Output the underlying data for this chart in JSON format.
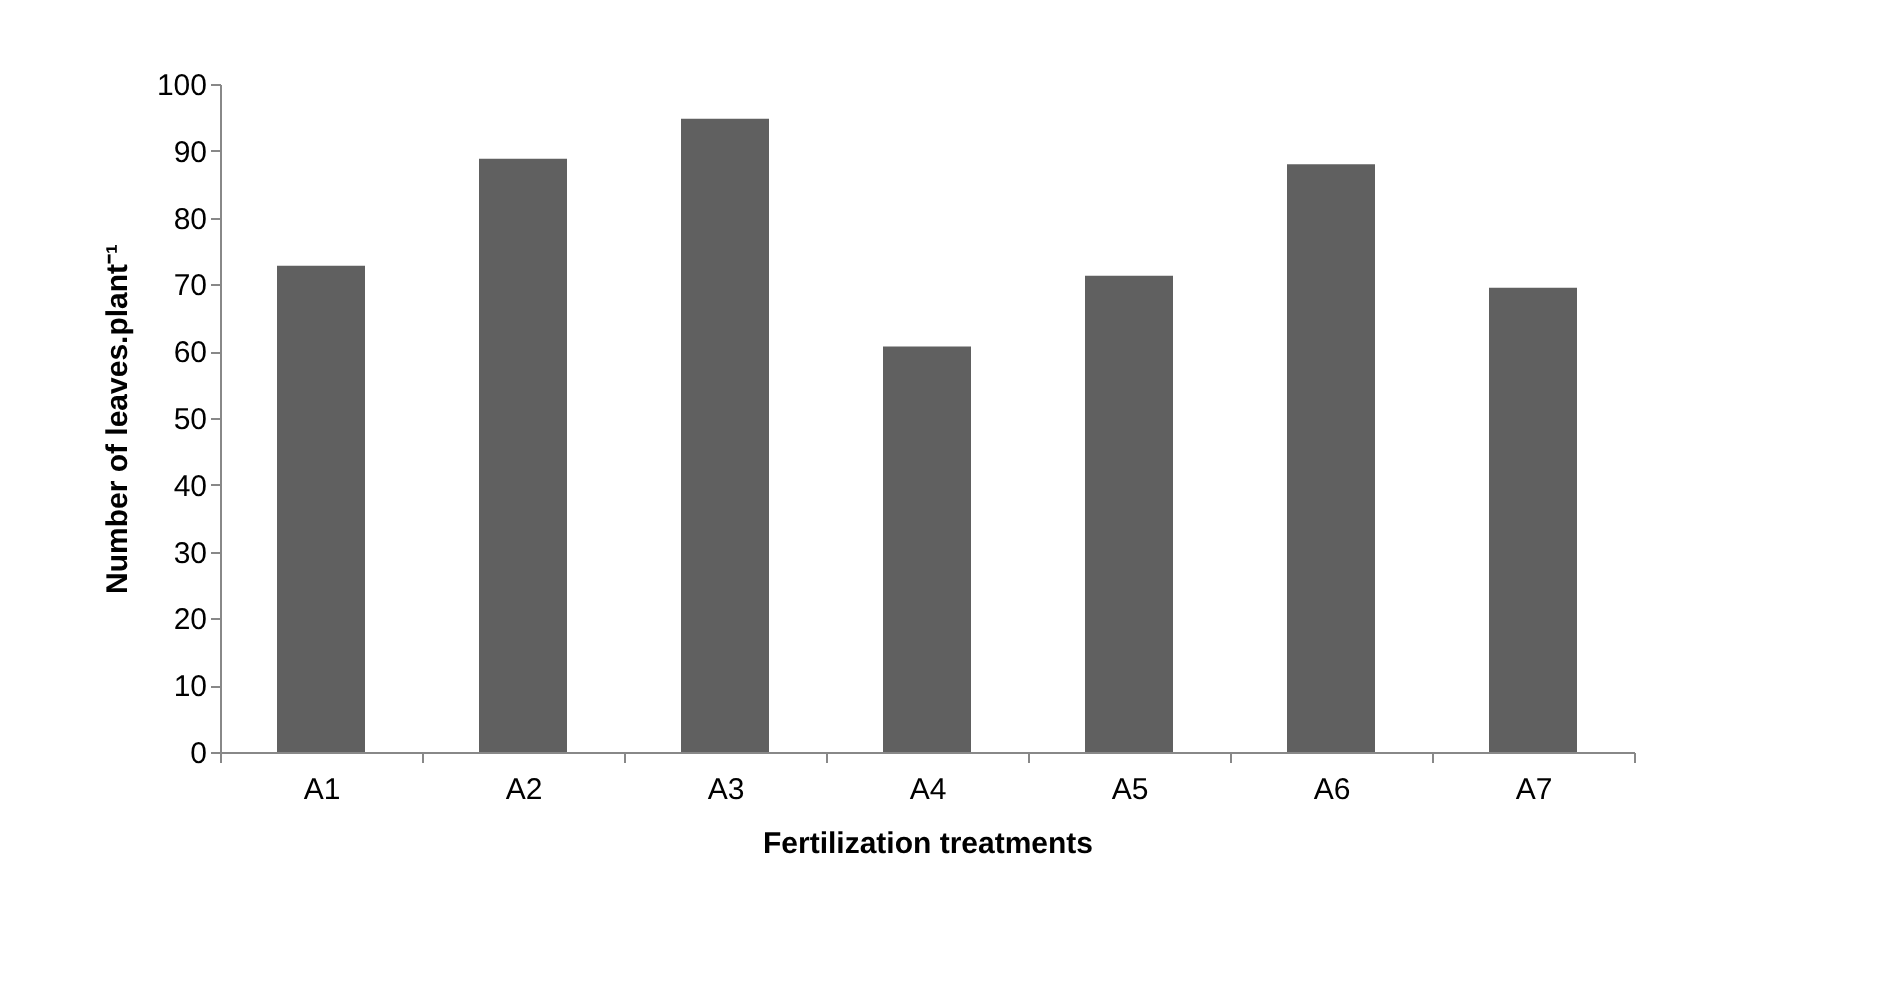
{
  "chart_data": {
    "type": "bar",
    "xlabel": "Fertilization treatments",
    "ylabel": "Number of leaves.plant⁻¹",
    "categories": [
      "A1",
      "A2",
      "A3",
      "A4",
      "A5",
      "A6",
      "A7"
    ],
    "values": [
      72.8,
      88.8,
      94.8,
      60.7,
      71.3,
      88.0,
      69.5
    ],
    "color": "#606060",
    "ylim": [
      0,
      100
    ],
    "yticks": [
      0,
      10,
      20,
      30,
      40,
      50,
      60,
      70,
      80,
      90,
      100
    ],
    "grid": false
  }
}
